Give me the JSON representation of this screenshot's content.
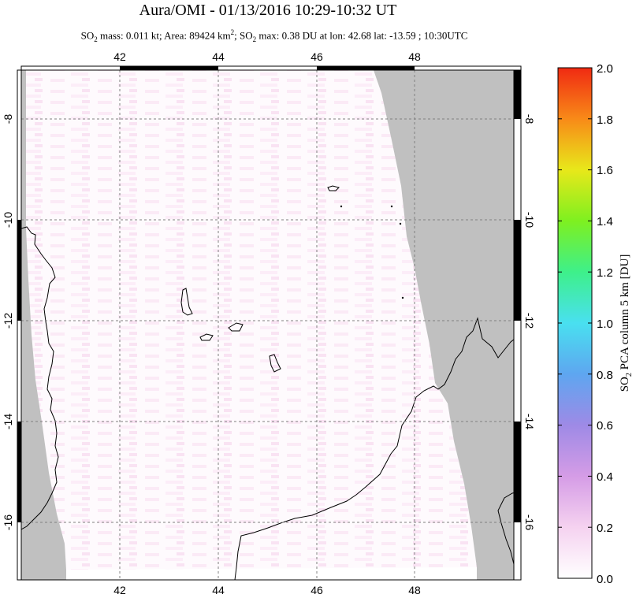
{
  "header": {
    "title": "Aura/OMI - 01/13/2016 10:29-10:32 UT",
    "stats_prefix": "SO",
    "stats_sub": "2",
    "stats_mass_area": " mass: 0.011 kt; Area: 89424 km",
    "stats_sup": "2",
    "stats_rest_prefix": "; SO",
    "stats_rest_sub": "2",
    "stats_rest": " max: 0.38 DU at lon: 42.68 lat: -13.59 ; 10:30UTC"
  },
  "map": {
    "lon_ticks": [
      "42",
      "44",
      "46",
      "48"
    ],
    "lat_ticks": [
      "-8",
      "-10",
      "-12",
      "-14",
      "-16"
    ],
    "land_color": "#c0c0c0",
    "background_color": "#ffffff",
    "grid_style": "dashed"
  },
  "colorbar": {
    "label_prefix": "SO",
    "label_sub": "2",
    "label_rest": " PCA column 5 km [DU]",
    "ticks": [
      "2.0",
      "1.8",
      "1.6",
      "1.4",
      "1.2",
      "1.0",
      "0.8",
      "0.6",
      "0.4",
      "0.2",
      "0.0"
    ],
    "colors": [
      "#ffffff",
      "#f5d2f0",
      "#d59ce6",
      "#9e8ae6",
      "#5ea6f0",
      "#49e0f0",
      "#3ef08a",
      "#7ef020",
      "#e8e81a",
      "#f88a18",
      "#f02a12"
    ]
  }
}
